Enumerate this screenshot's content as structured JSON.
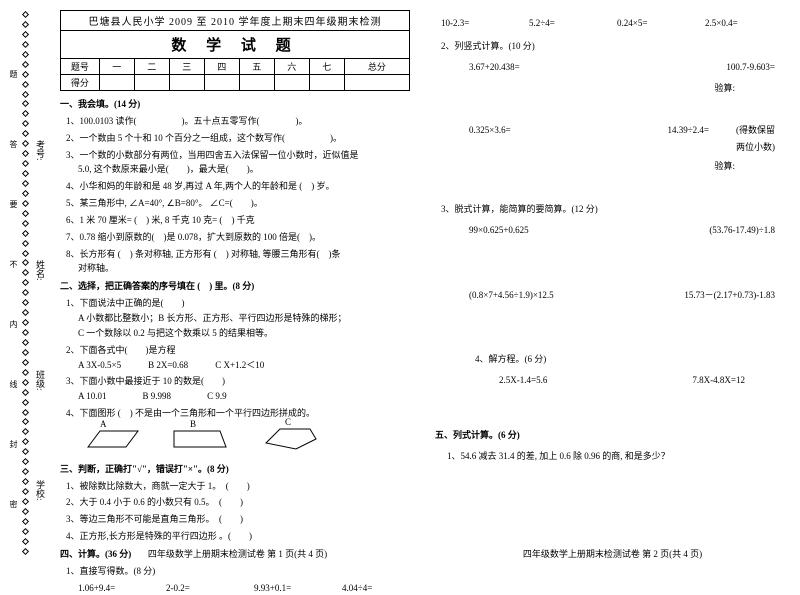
{
  "binding": {
    "labels": [
      "学校:",
      "班级:",
      "姓名:",
      "考号:"
    ],
    "marks": [
      "密",
      "封",
      "线",
      "内",
      "不",
      "要",
      "答",
      "题"
    ]
  },
  "header": {
    "top": "巴塘县人民小学 2009 至 2010 学年度上期末四年级期末检测",
    "main": "数 学 试 题",
    "cols": [
      "题号",
      "一",
      "二",
      "三",
      "四",
      "五",
      "六",
      "七",
      "总分"
    ],
    "score": "得分"
  },
  "s1": {
    "title": "一、我会填。(14 分)",
    "q1a": "1、100.0103 读作(",
    "q1b": ")。五十点五零写作(",
    "q1c": ")。",
    "q2a": "2、一个数由 5 个十和 10 个百分之一组成，这个数写作(",
    "q2b": ")。",
    "q3a": "3、一个数的小数部分有两位，当用四舍五入法保留一位小数时，近似值是",
    "q3b": "5.0, 这个数原来最小是(",
    "q3c": ")，最大是(",
    "q3d": ")。",
    "q4a": "4、小华和妈的年龄和是 48 岁,再过 A 年,两个人的年龄和是 (",
    "q4b": ") 岁。",
    "q5a": "5、某三角形中, ∠A=40°, ∠B=80°。 ∠C=(",
    "q5b": ")。",
    "q6a": "6、1 米 70 厘米= (",
    "q6b": ") 米, 8 千克 10 克= (",
    "q6c": ") 千克",
    "q7a": "7、0.78 缩小到原数的(",
    "q7b": ")是 0.078，扩大到原数的 100 倍是(",
    "q7c": ")。",
    "q8a": "8、长方形有 (",
    "q8b": ") 条对称轴, 正方形有 (",
    "q8c": ") 对称轴, 等腰三角形有(",
    "q8d": ")条",
    "q8e": "对称轴。"
  },
  "s2": {
    "title": "二、选择，把正确答案的序号填在 (　) 里。(8 分)",
    "q1": "1、下面说法中正确的是(　　)",
    "q1a": "A  小数都比整数小；B  长方形、正方形、平行四边形是特殊的梯形；",
    "q1b": "C  一个数除以 0.2 与把这个数乘以 5 的结果相等。",
    "q2": "2、下面各式中(　　)是方程",
    "q2a": "A 3X-0.5×5",
    "q2b": "B  2X=0.68",
    "q2c": "C   X+1.2＜10",
    "q3": "3、下面小数中最接近于 10 的数是(　　)",
    "q3a": "A   10.01",
    "q3b": "B    9.998",
    "q3c": "C   9.9",
    "q4": "4、下面图形 (　) 不是由一个三角形和一个平行四边形拼成的。",
    "labA": "A",
    "labB": "B",
    "labC": "C"
  },
  "s3": {
    "title": "三、判断，正确打\"√\"，错误打\"×\"。(8 分)",
    "q1": "1、被除数比除数大，商就一定大于 1。　(　　)",
    "q2": "2、大于 0.4 小于 0.6 的小数只有 0.5。　(　　)",
    "q3": "3、等边三角形不可能是直角三角形。　(　　)",
    "q4": "4、正方形,长方形是特殊的平行四边形 。(　　)"
  },
  "s4": {
    "title": "四、计算。(36 分)",
    "sub1": "1、直接写得数。(8 分)",
    "r1": [
      "1.06+9.4=",
      "2-0.2=",
      "9.93+0.1=",
      "4.04÷4="
    ],
    "r2": [
      "10-2.3=",
      "5.2÷4=",
      "0.24×5=",
      "2.5×0.4="
    ],
    "sub2": "2、列竖式计算。(10 分)",
    "v1": "3.67+20.438=",
    "v2": "100.7-9.603=",
    "chk": "验算:",
    "v3": "0.325×3.6=",
    "v4": "14.39÷2.4=",
    "note": "(得数保留",
    "note2": "两位小数)",
    "sub3": "3、脱式计算，能简算的要简算。(12 分)",
    "e1": "99×0.625+0.625",
    "e2": "(53.76-17.49)÷1.8",
    "e3": "(0.8×7+4.56÷1.9)×12.5",
    "e4": "15.73－(2.17+0.73)-1.83",
    "sub4": "4、解方程。(6 分)",
    "eq1": "2.5X-1.4=5.6",
    "eq2": "7.8X-4.8X=12"
  },
  "s5": {
    "title": "五、列式计算。(6 分)",
    "q1": "1、54.6 减去 31.4 的差, 加上 0.6 除 0.96 的商, 和是多少？"
  },
  "foot": {
    "p1": "四年级数学上册期末检测试卷  第 1 页(共 4 页)",
    "p2": "四年级数学上册期末检测试卷  第 2 页(共 4 页)"
  }
}
